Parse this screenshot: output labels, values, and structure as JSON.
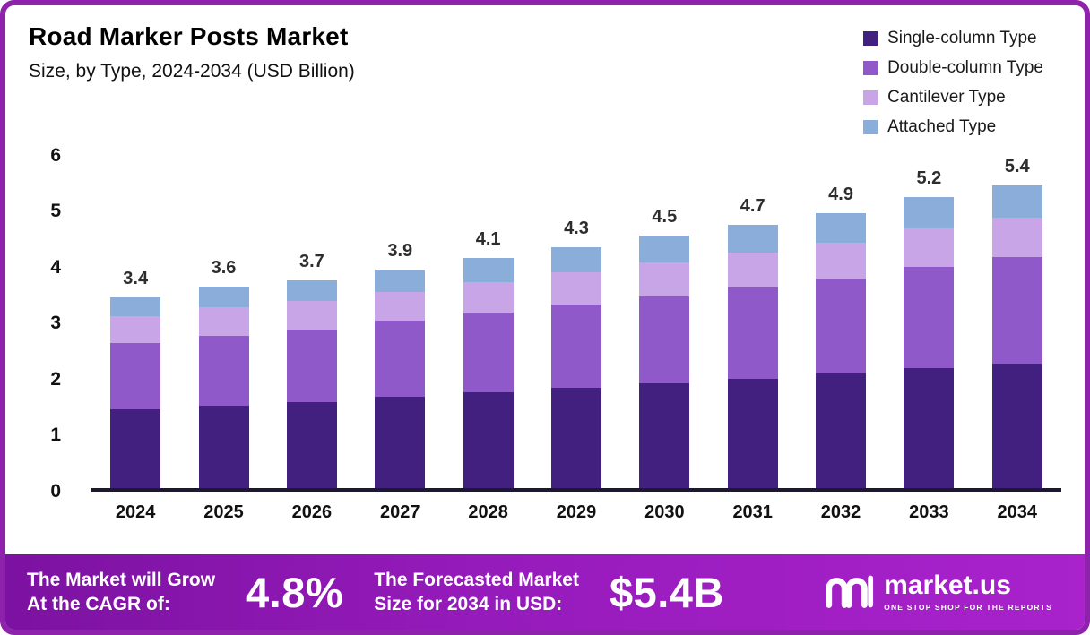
{
  "header": {
    "title": "Road Marker Posts Market",
    "subtitle": "Size, by Type, 2024-2034 (USD Billion)"
  },
  "chart_data": {
    "type": "bar",
    "stacked": true,
    "title": "Road Marker Posts Market",
    "subtitle": "Size, by Type, 2024-2034 (USD Billion)",
    "categories": [
      "2024",
      "2025",
      "2026",
      "2027",
      "2028",
      "2029",
      "2030",
      "2031",
      "2032",
      "2033",
      "2034"
    ],
    "series": [
      {
        "name": "Single-column Type",
        "color": "#41207f",
        "values": [
          1.4,
          1.47,
          1.53,
          1.62,
          1.7,
          1.78,
          1.87,
          1.95,
          2.04,
          2.13,
          2.22
        ]
      },
      {
        "name": "Double-column Type",
        "color": "#9059c9",
        "values": [
          1.18,
          1.25,
          1.3,
          1.36,
          1.43,
          1.5,
          1.55,
          1.63,
          1.7,
          1.82,
          1.9
        ]
      },
      {
        "name": "Cantilever Type",
        "color": "#c7a5e7",
        "values": [
          0.48,
          0.51,
          0.5,
          0.52,
          0.55,
          0.57,
          0.6,
          0.62,
          0.64,
          0.68,
          0.7
        ]
      },
      {
        "name": "Attached Type",
        "color": "#8badd9",
        "values": [
          0.34,
          0.37,
          0.37,
          0.4,
          0.42,
          0.45,
          0.48,
          0.5,
          0.52,
          0.57,
          0.58
        ]
      }
    ],
    "totals": [
      3.4,
      3.6,
      3.7,
      3.9,
      4.1,
      4.3,
      4.5,
      4.7,
      4.9,
      5.2,
      5.4
    ],
    "ylabel": "",
    "xlabel": "",
    "ylim": [
      0,
      6
    ],
    "yticks": [
      0,
      1,
      2,
      3,
      4,
      5,
      6
    ],
    "grid": false,
    "legend_position": "top-right"
  },
  "footer": {
    "cagr_label": "The Market will Grow\nAt the CAGR of:",
    "cagr_value": "4.8%",
    "forecast_label": "The Forecasted Market\nSize for 2034 in USD:",
    "forecast_value": "$5.4B",
    "brand": "market.us",
    "brand_tagline": "ONE STOP SHOP FOR THE REPORTS"
  },
  "colors": {
    "frame_border": "#8f22ad",
    "axis_line": "#1b1830",
    "footer_gradient_start": "#7c12a1",
    "footer_gradient_end": "#a922cc"
  }
}
